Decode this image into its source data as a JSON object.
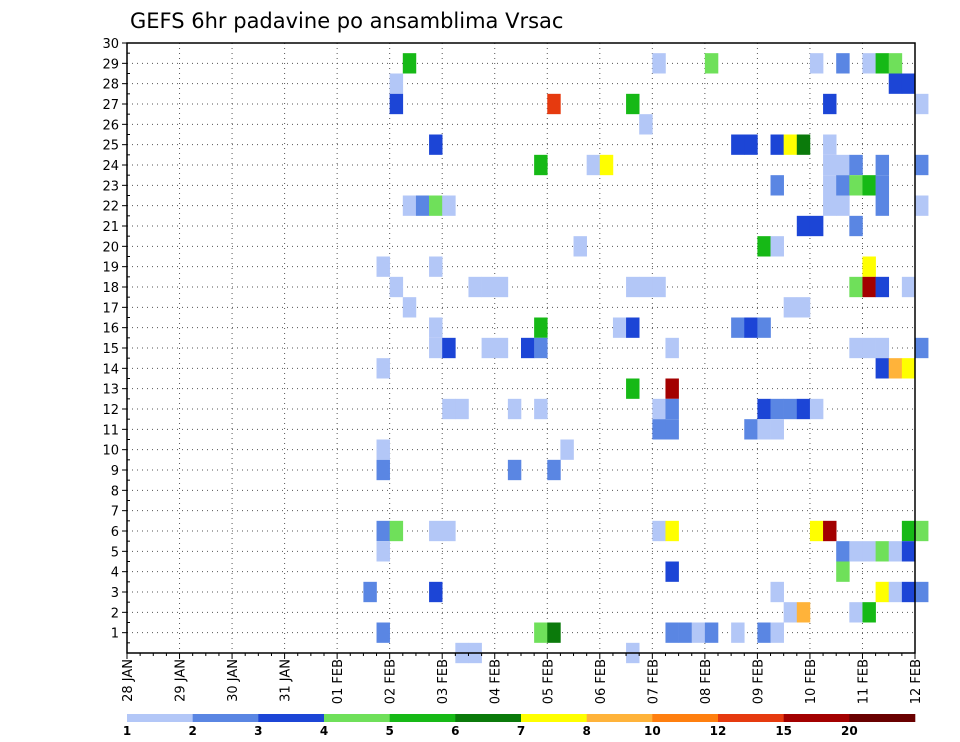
{
  "chart_data": {
    "type": "heatmap",
    "title": "GEFS 6hr padavine po ansamblima Vrsac",
    "xlabel": "",
    "ylabel": "",
    "x_tick_labels": [
      "28 JAN",
      "29 JAN",
      "30 JAN",
      "31 JAN",
      "01 FEB",
      "02 FEB",
      "03 FEB",
      "04 FEB",
      "05 FEB",
      "06 FEB",
      "07 FEB",
      "08 FEB",
      "09 FEB",
      "10 FEB",
      "11 FEB",
      "12 FEB"
    ],
    "x_range_days": [
      0,
      15
    ],
    "y_range": [
      0,
      30
    ],
    "y_tick_labels": [
      "1",
      "2",
      "3",
      "4",
      "5",
      "6",
      "7",
      "8",
      "9",
      "10",
      "11",
      "12",
      "13",
      "14",
      "15",
      "16",
      "17",
      "18",
      "19",
      "20",
      "21",
      "22",
      "23",
      "24",
      "25",
      "26",
      "27",
      "28",
      "29",
      "30"
    ],
    "grid": true,
    "legend": {
      "position": "bottom",
      "thresholds": [
        "1",
        "2",
        "3",
        "4",
        "5",
        "6",
        "7",
        "8",
        "10",
        "12",
        "15",
        "20"
      ],
      "colors": [
        "#b3c7f7",
        "#5a86e3",
        "#1c45d6",
        "#6fe05a",
        "#16b916",
        "#0b7a0b",
        "#ffff00",
        "#ffb33a",
        "#ff7f0f",
        "#e63a0f",
        "#a30000",
        "#690000"
      ]
    },
    "cells": [
      {
        "member": 29,
        "step": 21,
        "value": 5
      },
      {
        "member": 29,
        "step": 40,
        "value": 1
      },
      {
        "member": 29,
        "step": 44,
        "value": 4
      },
      {
        "member": 29,
        "step": 52,
        "value": 1
      },
      {
        "member": 29,
        "step": 54,
        "value": 2
      },
      {
        "member": 29,
        "step": 56,
        "value": 1
      },
      {
        "member": 29,
        "step": 57,
        "value": 5
      },
      {
        "member": 29,
        "step": 58,
        "value": 4
      },
      {
        "member": 28,
        "step": 20,
        "value": 1
      },
      {
        "member": 28,
        "step": 58,
        "value": 3
      },
      {
        "member": 28,
        "step": 59,
        "value": 3
      },
      {
        "member": 27,
        "step": 20,
        "value": 3
      },
      {
        "member": 27,
        "step": 32,
        "value": 14
      },
      {
        "member": 27,
        "step": 38,
        "value": 5
      },
      {
        "member": 27,
        "step": 53,
        "value": 3
      },
      {
        "member": 27,
        "step": 60,
        "value": 1
      },
      {
        "member": 26,
        "step": 39,
        "value": 1
      },
      {
        "member": 25,
        "step": 23,
        "value": 3
      },
      {
        "member": 25,
        "step": 46,
        "value": 3
      },
      {
        "member": 25,
        "step": 47,
        "value": 3
      },
      {
        "member": 25,
        "step": 49,
        "value": 3
      },
      {
        "member": 25,
        "step": 50,
        "value": 7
      },
      {
        "member": 25,
        "step": 51,
        "value": 6
      },
      {
        "member": 25,
        "step": 53,
        "value": 1
      },
      {
        "member": 24,
        "step": 31,
        "value": 5
      },
      {
        "member": 24,
        "step": 35,
        "value": 1
      },
      {
        "member": 24,
        "step": 36,
        "value": 7
      },
      {
        "member": 24,
        "step": 53,
        "value": 1
      },
      {
        "member": 24,
        "step": 54,
        "value": 1
      },
      {
        "member": 24,
        "step": 55,
        "value": 2
      },
      {
        "member": 24,
        "step": 57,
        "value": 2
      },
      {
        "member": 24,
        "step": 60,
        "value": 2
      },
      {
        "member": 23,
        "step": 49,
        "value": 2
      },
      {
        "member": 23,
        "step": 53,
        "value": 1
      },
      {
        "member": 23,
        "step": 54,
        "value": 2
      },
      {
        "member": 23,
        "step": 55,
        "value": 4
      },
      {
        "member": 23,
        "step": 56,
        "value": 5
      },
      {
        "member": 23,
        "step": 57,
        "value": 2
      },
      {
        "member": 22,
        "step": 21,
        "value": 1
      },
      {
        "member": 22,
        "step": 22,
        "value": 2
      },
      {
        "member": 22,
        "step": 23,
        "value": 4
      },
      {
        "member": 22,
        "step": 24,
        "value": 1
      },
      {
        "member": 22,
        "step": 53,
        "value": 1
      },
      {
        "member": 22,
        "step": 54,
        "value": 1
      },
      {
        "member": 22,
        "step": 57,
        "value": 2
      },
      {
        "member": 22,
        "step": 60,
        "value": 1
      },
      {
        "member": 21,
        "step": 51,
        "value": 3
      },
      {
        "member": 21,
        "step": 52,
        "value": 3
      },
      {
        "member": 21,
        "step": 55,
        "value": 2
      },
      {
        "member": 20,
        "step": 34,
        "value": 1
      },
      {
        "member": 20,
        "step": 48,
        "value": 5
      },
      {
        "member": 20,
        "step": 49,
        "value": 1
      },
      {
        "member": 19,
        "step": 19,
        "value": 1
      },
      {
        "member": 19,
        "step": 23,
        "value": 1
      },
      {
        "member": 19,
        "step": 56,
        "value": 7
      },
      {
        "member": 18,
        "step": 20,
        "value": 1
      },
      {
        "member": 18,
        "step": 26,
        "value": 1
      },
      {
        "member": 18,
        "step": 27,
        "value": 1
      },
      {
        "member": 18,
        "step": 28,
        "value": 1
      },
      {
        "member": 18,
        "step": 38,
        "value": 1
      },
      {
        "member": 18,
        "step": 39,
        "value": 1
      },
      {
        "member": 18,
        "step": 40,
        "value": 1
      },
      {
        "member": 18,
        "step": 55,
        "value": 4
      },
      {
        "member": 18,
        "step": 56,
        "value": 15
      },
      {
        "member": 18,
        "step": 57,
        "value": 3
      },
      {
        "member": 18,
        "step": 59,
        "value": 1
      },
      {
        "member": 17,
        "step": 21,
        "value": 1
      },
      {
        "member": 17,
        "step": 50,
        "value": 1
      },
      {
        "member": 17,
        "step": 51,
        "value": 1
      },
      {
        "member": 16,
        "step": 23,
        "value": 1
      },
      {
        "member": 16,
        "step": 31,
        "value": 5
      },
      {
        "member": 16,
        "step": 37,
        "value": 1
      },
      {
        "member": 16,
        "step": 38,
        "value": 3
      },
      {
        "member": 16,
        "step": 46,
        "value": 2
      },
      {
        "member": 16,
        "step": 47,
        "value": 3
      },
      {
        "member": 16,
        "step": 48,
        "value": 2
      },
      {
        "member": 15,
        "step": 23,
        "value": 1
      },
      {
        "member": 15,
        "step": 24,
        "value": 3
      },
      {
        "member": 15,
        "step": 27,
        "value": 1
      },
      {
        "member": 15,
        "step": 28,
        "value": 1
      },
      {
        "member": 15,
        "step": 30,
        "value": 3
      },
      {
        "member": 15,
        "step": 31,
        "value": 2
      },
      {
        "member": 15,
        "step": 41,
        "value": 1
      },
      {
        "member": 15,
        "step": 55,
        "value": 1
      },
      {
        "member": 15,
        "step": 56,
        "value": 1
      },
      {
        "member": 15,
        "step": 57,
        "value": 1
      },
      {
        "member": 15,
        "step": 60,
        "value": 2
      },
      {
        "member": 14,
        "step": 19,
        "value": 1
      },
      {
        "member": 14,
        "step": 57,
        "value": 3
      },
      {
        "member": 14,
        "step": 58,
        "value": 8
      },
      {
        "member": 14,
        "step": 59,
        "value": 7
      },
      {
        "member": 13,
        "step": 38,
        "value": 5
      },
      {
        "member": 13,
        "step": 41,
        "value": 15
      },
      {
        "member": 12,
        "step": 24,
        "value": 1
      },
      {
        "member": 12,
        "step": 25,
        "value": 1
      },
      {
        "member": 12,
        "step": 29,
        "value": 1
      },
      {
        "member": 12,
        "step": 31,
        "value": 1
      },
      {
        "member": 12,
        "step": 40,
        "value": 1
      },
      {
        "member": 12,
        "step": 41,
        "value": 2
      },
      {
        "member": 12,
        "step": 48,
        "value": 3
      },
      {
        "member": 12,
        "step": 49,
        "value": 2
      },
      {
        "member": 12,
        "step": 50,
        "value": 2
      },
      {
        "member": 12,
        "step": 51,
        "value": 3
      },
      {
        "member": 12,
        "step": 52,
        "value": 1
      },
      {
        "member": 11,
        "step": 40,
        "value": 2
      },
      {
        "member": 11,
        "step": 41,
        "value": 2
      },
      {
        "member": 11,
        "step": 47,
        "value": 2
      },
      {
        "member": 11,
        "step": 48,
        "value": 1
      },
      {
        "member": 11,
        "step": 49,
        "value": 1
      },
      {
        "member": 10,
        "step": 19,
        "value": 1
      },
      {
        "member": 10,
        "step": 33,
        "value": 1
      },
      {
        "member": 9,
        "step": 19,
        "value": 2
      },
      {
        "member": 9,
        "step": 29,
        "value": 2
      },
      {
        "member": 9,
        "step": 32,
        "value": 2
      },
      {
        "member": 6,
        "step": 19,
        "value": 2
      },
      {
        "member": 6,
        "step": 20,
        "value": 4
      },
      {
        "member": 6,
        "step": 23,
        "value": 1
      },
      {
        "member": 6,
        "step": 24,
        "value": 1
      },
      {
        "member": 6,
        "step": 40,
        "value": 1
      },
      {
        "member": 6,
        "step": 41,
        "value": 7
      },
      {
        "member": 6,
        "step": 52,
        "value": 7
      },
      {
        "member": 6,
        "step": 53,
        "value": 15
      },
      {
        "member": 6,
        "step": 59,
        "value": 5
      },
      {
        "member": 6,
        "step": 60,
        "value": 4
      },
      {
        "member": 5,
        "step": 19,
        "value": 1
      },
      {
        "member": 5,
        "step": 54,
        "value": 2
      },
      {
        "member": 5,
        "step": 55,
        "value": 1
      },
      {
        "member": 5,
        "step": 56,
        "value": 1
      },
      {
        "member": 5,
        "step": 57,
        "value": 4
      },
      {
        "member": 5,
        "step": 58,
        "value": 1
      },
      {
        "member": 5,
        "step": 59,
        "value": 3
      },
      {
        "member": 4,
        "step": 41,
        "value": 3
      },
      {
        "member": 4,
        "step": 54,
        "value": 4
      },
      {
        "member": 3,
        "step": 18,
        "value": 2
      },
      {
        "member": 3,
        "step": 23,
        "value": 3
      },
      {
        "member": 3,
        "step": 49,
        "value": 1
      },
      {
        "member": 3,
        "step": 57,
        "value": 7
      },
      {
        "member": 3,
        "step": 58,
        "value": 1
      },
      {
        "member": 3,
        "step": 59,
        "value": 3
      },
      {
        "member": 3,
        "step": 60,
        "value": 2
      },
      {
        "member": 2,
        "step": 50,
        "value": 1
      },
      {
        "member": 2,
        "step": 51,
        "value": 8
      },
      {
        "member": 2,
        "step": 55,
        "value": 1
      },
      {
        "member": 2,
        "step": 56,
        "value": 5
      },
      {
        "member": 1,
        "step": 19,
        "value": 2
      },
      {
        "member": 1,
        "step": 31,
        "value": 4
      },
      {
        "member": 1,
        "step": 32,
        "value": 6
      },
      {
        "member": 1,
        "step": 41,
        "value": 2
      },
      {
        "member": 1,
        "step": 42,
        "value": 2
      },
      {
        "member": 1,
        "step": 43,
        "value": 1
      },
      {
        "member": 1,
        "step": 44,
        "value": 2
      },
      {
        "member": 1,
        "step": 46,
        "value": 1
      },
      {
        "member": 1,
        "step": 48,
        "value": 2
      },
      {
        "member": 1,
        "step": 49,
        "value": 1
      },
      {
        "member": 0,
        "step": 25,
        "value": 1
      },
      {
        "member": 0,
        "step": 26,
        "value": 1
      },
      {
        "member": 0,
        "step": 38,
        "value": 1
      }
    ]
  }
}
